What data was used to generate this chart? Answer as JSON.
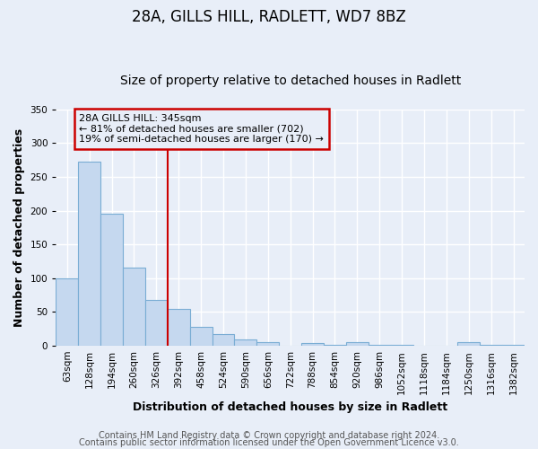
{
  "title": "28A, GILLS HILL, RADLETT, WD7 8BZ",
  "subtitle": "Size of property relative to detached houses in Radlett",
  "xlabel": "Distribution of detached houses by size in Radlett",
  "ylabel": "Number of detached properties",
  "bar_labels": [
    "63sqm",
    "128sqm",
    "194sqm",
    "260sqm",
    "326sqm",
    "392sqm",
    "458sqm",
    "524sqm",
    "590sqm",
    "656sqm",
    "722sqm",
    "788sqm",
    "854sqm",
    "920sqm",
    "986sqm",
    "1052sqm",
    "1118sqm",
    "1184sqm",
    "1250sqm",
    "1316sqm",
    "1382sqm"
  ],
  "bar_values": [
    100,
    272,
    195,
    116,
    68,
    55,
    28,
    17,
    10,
    5,
    0,
    4,
    1,
    5,
    1,
    1,
    0,
    0,
    5,
    1,
    2
  ],
  "bar_color": "#c5d8ef",
  "bar_edge_color": "#7aadd4",
  "vline_x": 4.5,
  "vline_color": "#cc0000",
  "annotation_text": "28A GILLS HILL: 345sqm\n← 81% of detached houses are smaller (702)\n19% of semi-detached houses are larger (170) →",
  "annotation_box_color": "#cc0000",
  "ylim": [
    0,
    350
  ],
  "yticks": [
    0,
    50,
    100,
    150,
    200,
    250,
    300,
    350
  ],
  "footer1": "Contains HM Land Registry data © Crown copyright and database right 2024.",
  "footer2": "Contains public sector information licensed under the Open Government Licence v3.0.",
  "bg_color": "#e8eef8",
  "plot_bg_color": "#e8eef8",
  "grid_color": "#ffffff",
  "title_fontsize": 12,
  "subtitle_fontsize": 10,
  "axis_label_fontsize": 9,
  "tick_fontsize": 7.5,
  "footer_fontsize": 7,
  "annotation_fontsize": 8
}
